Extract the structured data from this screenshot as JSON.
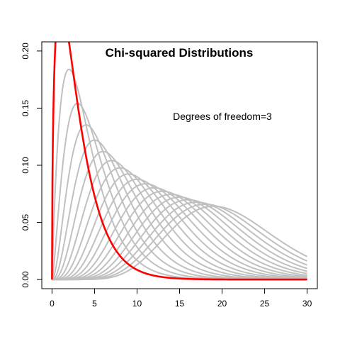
{
  "chart_data": {
    "type": "line",
    "title": "Chi-squared Distributions",
    "annotation": "Degrees of freedom=3",
    "xlabel": "",
    "ylabel": "",
    "xlim": [
      -1.2,
      31.2
    ],
    "ylim": [
      -0.008,
      0.208
    ],
    "x_ticks": [
      0,
      5,
      10,
      15,
      20,
      25,
      30
    ],
    "y_ticks": [
      0.0,
      0.05,
      0.1,
      0.15,
      0.2
    ],
    "y_tick_labels": [
      "0.00",
      "0.05",
      "0.10",
      "0.15",
      "0.20"
    ],
    "x_range": [
      0,
      30
    ],
    "grid": false,
    "background_degrees_of_freedom": [
      4,
      5,
      6,
      7,
      8,
      9,
      10,
      11,
      12,
      13,
      14,
      15,
      16,
      17,
      18,
      19,
      20,
      21
    ],
    "highlighted_degrees_of_freedom": 3,
    "background_color": "#c0c0c0",
    "highlight_color": "#ff0000"
  }
}
